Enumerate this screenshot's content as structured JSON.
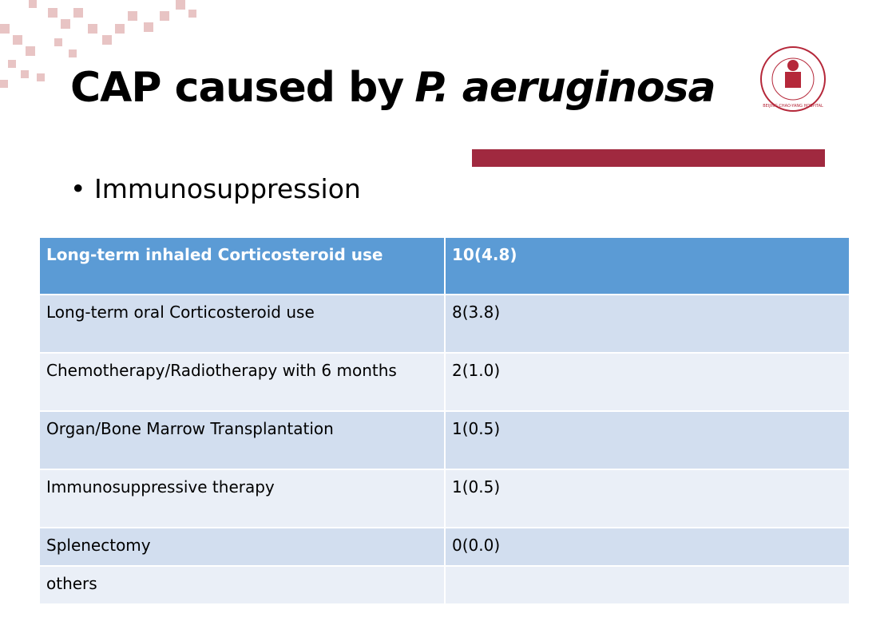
{
  "title": {
    "text": "CAP caused by",
    "organism": "P. aeruginosa"
  },
  "logo": {
    "text": "BEIJING CHAO-YANG HOSPITAL"
  },
  "bullet": "Immunosuppression",
  "table": {
    "rows": [
      [
        "Long-term inhaled Corticosteroid use",
        "10(4.8)"
      ],
      [
        "Long-term oral Corticosteroid use",
        "8(3.8)"
      ],
      [
        "Chemotherapy/Radiotherapy with 6 months",
        "2(1.0)"
      ],
      [
        "Organ/Bone Marrow Transplantation",
        "1(0.5)"
      ],
      [
        "Immunosuppressive therapy",
        "1(0.5)"
      ],
      [
        "Splenectomy",
        "0(0.0)"
      ],
      [
        "others"
      ]
    ]
  }
}
